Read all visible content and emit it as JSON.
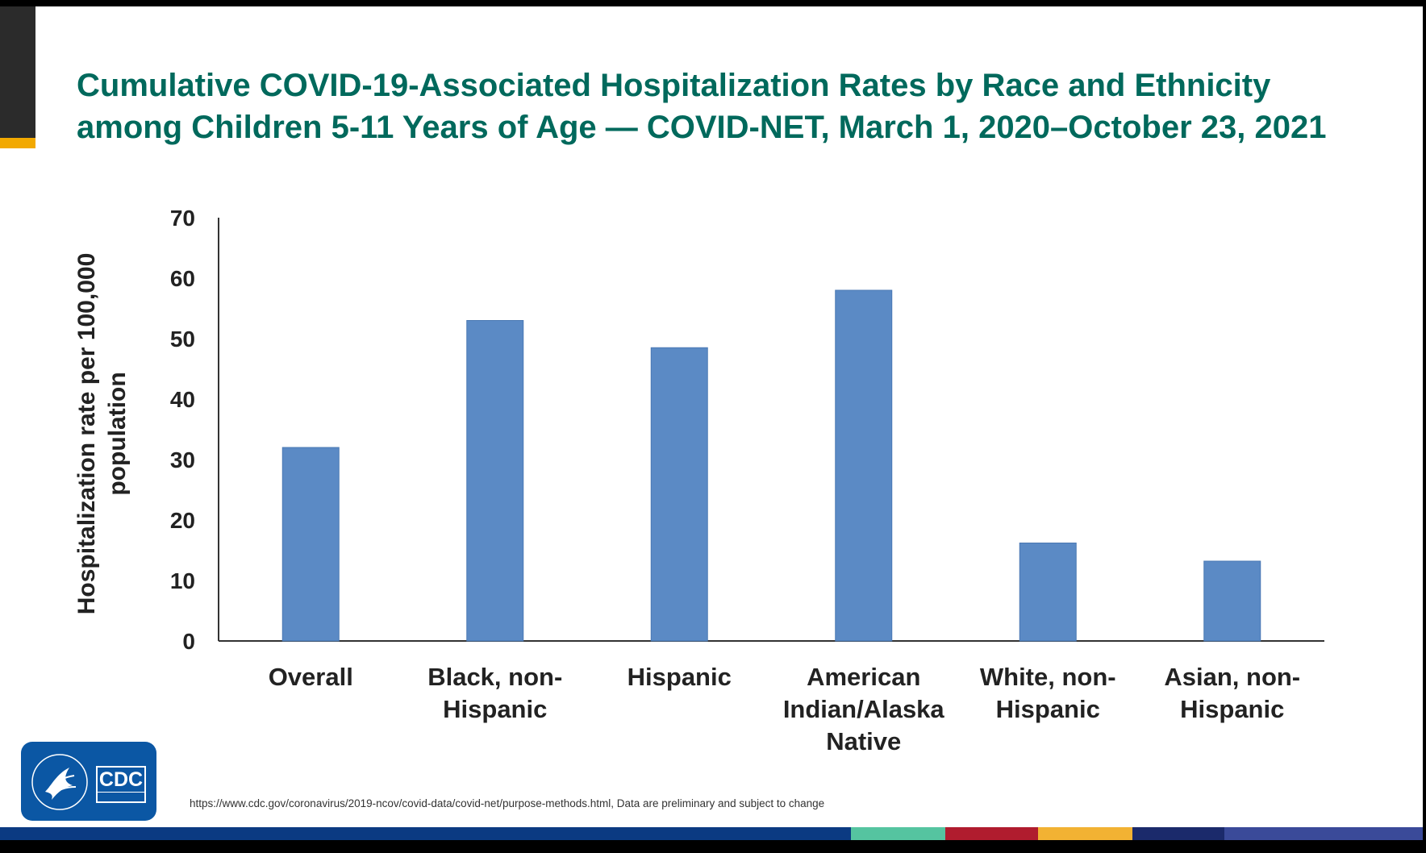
{
  "title": {
    "line1": "Cumulative COVID-19-Associated Hospitalization Rates by Race and Ethnicity",
    "line2": "among Children 5-11 Years of Age — COVID-NET, March 1, 2020–October 23, 2021"
  },
  "chart_data": {
    "type": "bar",
    "categories": [
      [
        "Overall"
      ],
      [
        "Black, non-",
        "Hispanic"
      ],
      [
        "Hispanic"
      ],
      [
        "American",
        "Indian/Alaska",
        "Native"
      ],
      [
        "White, non-",
        "Hispanic"
      ],
      [
        "Asian, non-",
        "Hispanic"
      ]
    ],
    "values": [
      32,
      53,
      48.5,
      58,
      16.2,
      13.2
    ],
    "ylabel": [
      "Hospitalization rate per 100,000",
      "population"
    ],
    "xlabel": "",
    "ylim": [
      0,
      70
    ],
    "yticks": [
      0,
      10,
      20,
      30,
      40,
      50,
      60,
      70
    ],
    "grid": false,
    "bar_color": "#5b8ac5"
  },
  "footer": {
    "source": "https://www.cdc.gov/coronavirus/2019-ncov/covid-data/covid-net/purpose-methods.html, Data are preliminary and subject to change",
    "logo_text": "CDC",
    "stripe_colors": [
      "#0b3a82",
      "#55c4a0",
      "#b01c2e",
      "#f2b233",
      "#1b2a6b",
      "#3a4a99"
    ]
  },
  "colors": {
    "title": "#00695c",
    "accent": "#f2a900"
  }
}
